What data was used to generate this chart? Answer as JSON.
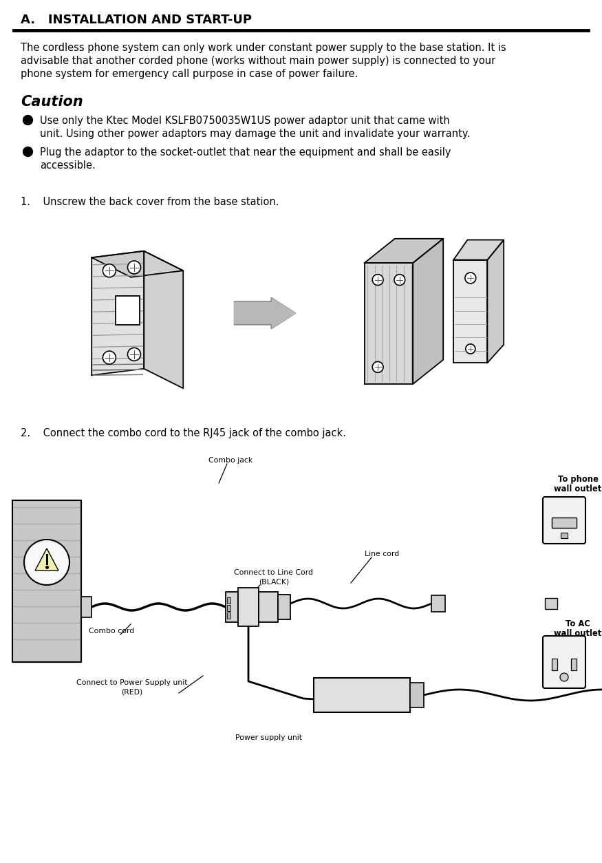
{
  "title": "A.   INSTALLATION AND START-UP",
  "body_lines": [
    "The cordless phone system can only work under constant power supply to the base station. It is",
    "advisable that another corded phone (works without main power supply) is connected to your",
    "phone system for emergency call purpose in case of power failure."
  ],
  "caution_title": "Caution",
  "bullet1": [
    "Use only the Ktec Model KSLFB0750035W1US power adaptor unit that came with",
    "unit. Using other power adaptors may damage the unit and invalidate your warranty."
  ],
  "bullet2": [
    "Plug the adaptor to the socket-outlet that near the equipment and shall be easily",
    "accessible."
  ],
  "step1_text": "1.    Unscrew the back cover from the base station.",
  "step2_text": "2.    Connect the combo cord to the RJ45 jack of the combo jack.",
  "label_combo_jack": "Combo jack",
  "label_to_phone": "To phone",
  "label_wall_outlet": "wall outlet",
  "label_combo_cord": "Combo cord",
  "label_connect_line": "Connect to Line Cord",
  "label_black": "(BLACK)",
  "label_line_cord": "Line cord",
  "label_connect_power": "Connect to Power Supply unit",
  "label_red": "(RED)",
  "label_power_supply": "Power supply unit",
  "label_to_ac": "To AC",
  "label_ac_outlet": "wall outlet",
  "bg_color": "#ffffff",
  "text_color": "#000000",
  "rule_color": "#000000",
  "gray_arrow": "#b0b0b0",
  "device_fill": "#e0e0e0",
  "device_edge": "#000000"
}
